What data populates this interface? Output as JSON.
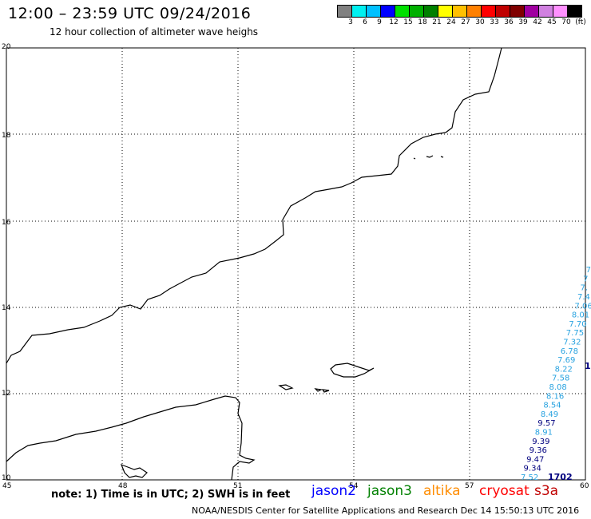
{
  "header": {
    "title": "12:00 – 23:59 UTC 09/24/2016",
    "subtitle": "12 hour collection of altimeter wave heighs"
  },
  "colorbar": {
    "colors": [
      "#808080",
      "#00f0f0",
      "#00c0ff",
      "#0000ff",
      "#00e000",
      "#00b000",
      "#008000",
      "#ffff00",
      "#ffc000",
      "#ff8000",
      "#ff0000",
      "#c00000",
      "#800000",
      "#a000a0",
      "#d080e0",
      "#ff90ff",
      "#000000"
    ],
    "labels": [
      "3",
      "6",
      "9",
      "12",
      "15",
      "18",
      "21",
      "24",
      "27",
      "30",
      "33",
      "36",
      "39",
      "42",
      "45",
      "70",
      "(ft)"
    ]
  },
  "axes": {
    "x_ticks": [
      "45",
      "48",
      "51",
      "54",
      "57",
      "60"
    ],
    "y_ticks": [
      "10",
      "12",
      "14",
      "16",
      "18",
      "20"
    ]
  },
  "track": {
    "color_light": "#29a3e0",
    "color_dark": "#00007f",
    "values": [
      {
        "text": "7.52",
        "color": "light"
      },
      {
        "text": "9.34",
        "color": "dark"
      },
      {
        "text": "9.47",
        "color": "dark"
      },
      {
        "text": "9.36",
        "color": "dark"
      },
      {
        "text": "9.39",
        "color": "dark"
      },
      {
        "text": "8.91",
        "color": "light"
      },
      {
        "text": "9.57",
        "color": "dark"
      },
      {
        "text": "8.49",
        "color": "light"
      },
      {
        "text": "8.54",
        "color": "light"
      },
      {
        "text": "8.16",
        "color": "light"
      },
      {
        "text": "8.08",
        "color": "light"
      },
      {
        "text": "7.58",
        "color": "light"
      },
      {
        "text": "8.22",
        "color": "light"
      },
      {
        "text": "7.69",
        "color": "light"
      },
      {
        "text": "6.78",
        "color": "light"
      },
      {
        "text": "7.32",
        "color": "light"
      },
      {
        "text": "7.75",
        "color": "light"
      },
      {
        "text": "7.70",
        "color": "light"
      },
      {
        "text": "8.01",
        "color": "light"
      },
      {
        "text": "7.06",
        "color": "light"
      },
      {
        "text": "7.4",
        "color": "light"
      },
      {
        "text": "7.",
        "color": "light"
      },
      {
        "text": "7",
        "color": "light"
      },
      {
        "text": "7",
        "color": "light"
      }
    ],
    "time_label": "1702",
    "edge_label": "1"
  },
  "note": "note: 1) Time is in UTC; 2) SWH is in feet",
  "satellites": [
    {
      "name": "jason2",
      "color": "#0000ff"
    },
    {
      "name": "jason3",
      "color": "#008000"
    },
    {
      "name": "altika",
      "color": "#ff8c00"
    },
    {
      "name": "cryosat",
      "color": "#ff0000"
    },
    {
      "name": "s3a",
      "color": "#c00000"
    }
  ],
  "footer": "NOAA/NESDIS Center for Satellite Applications and Research    Dec 14 15:50:13 UTC 2016"
}
